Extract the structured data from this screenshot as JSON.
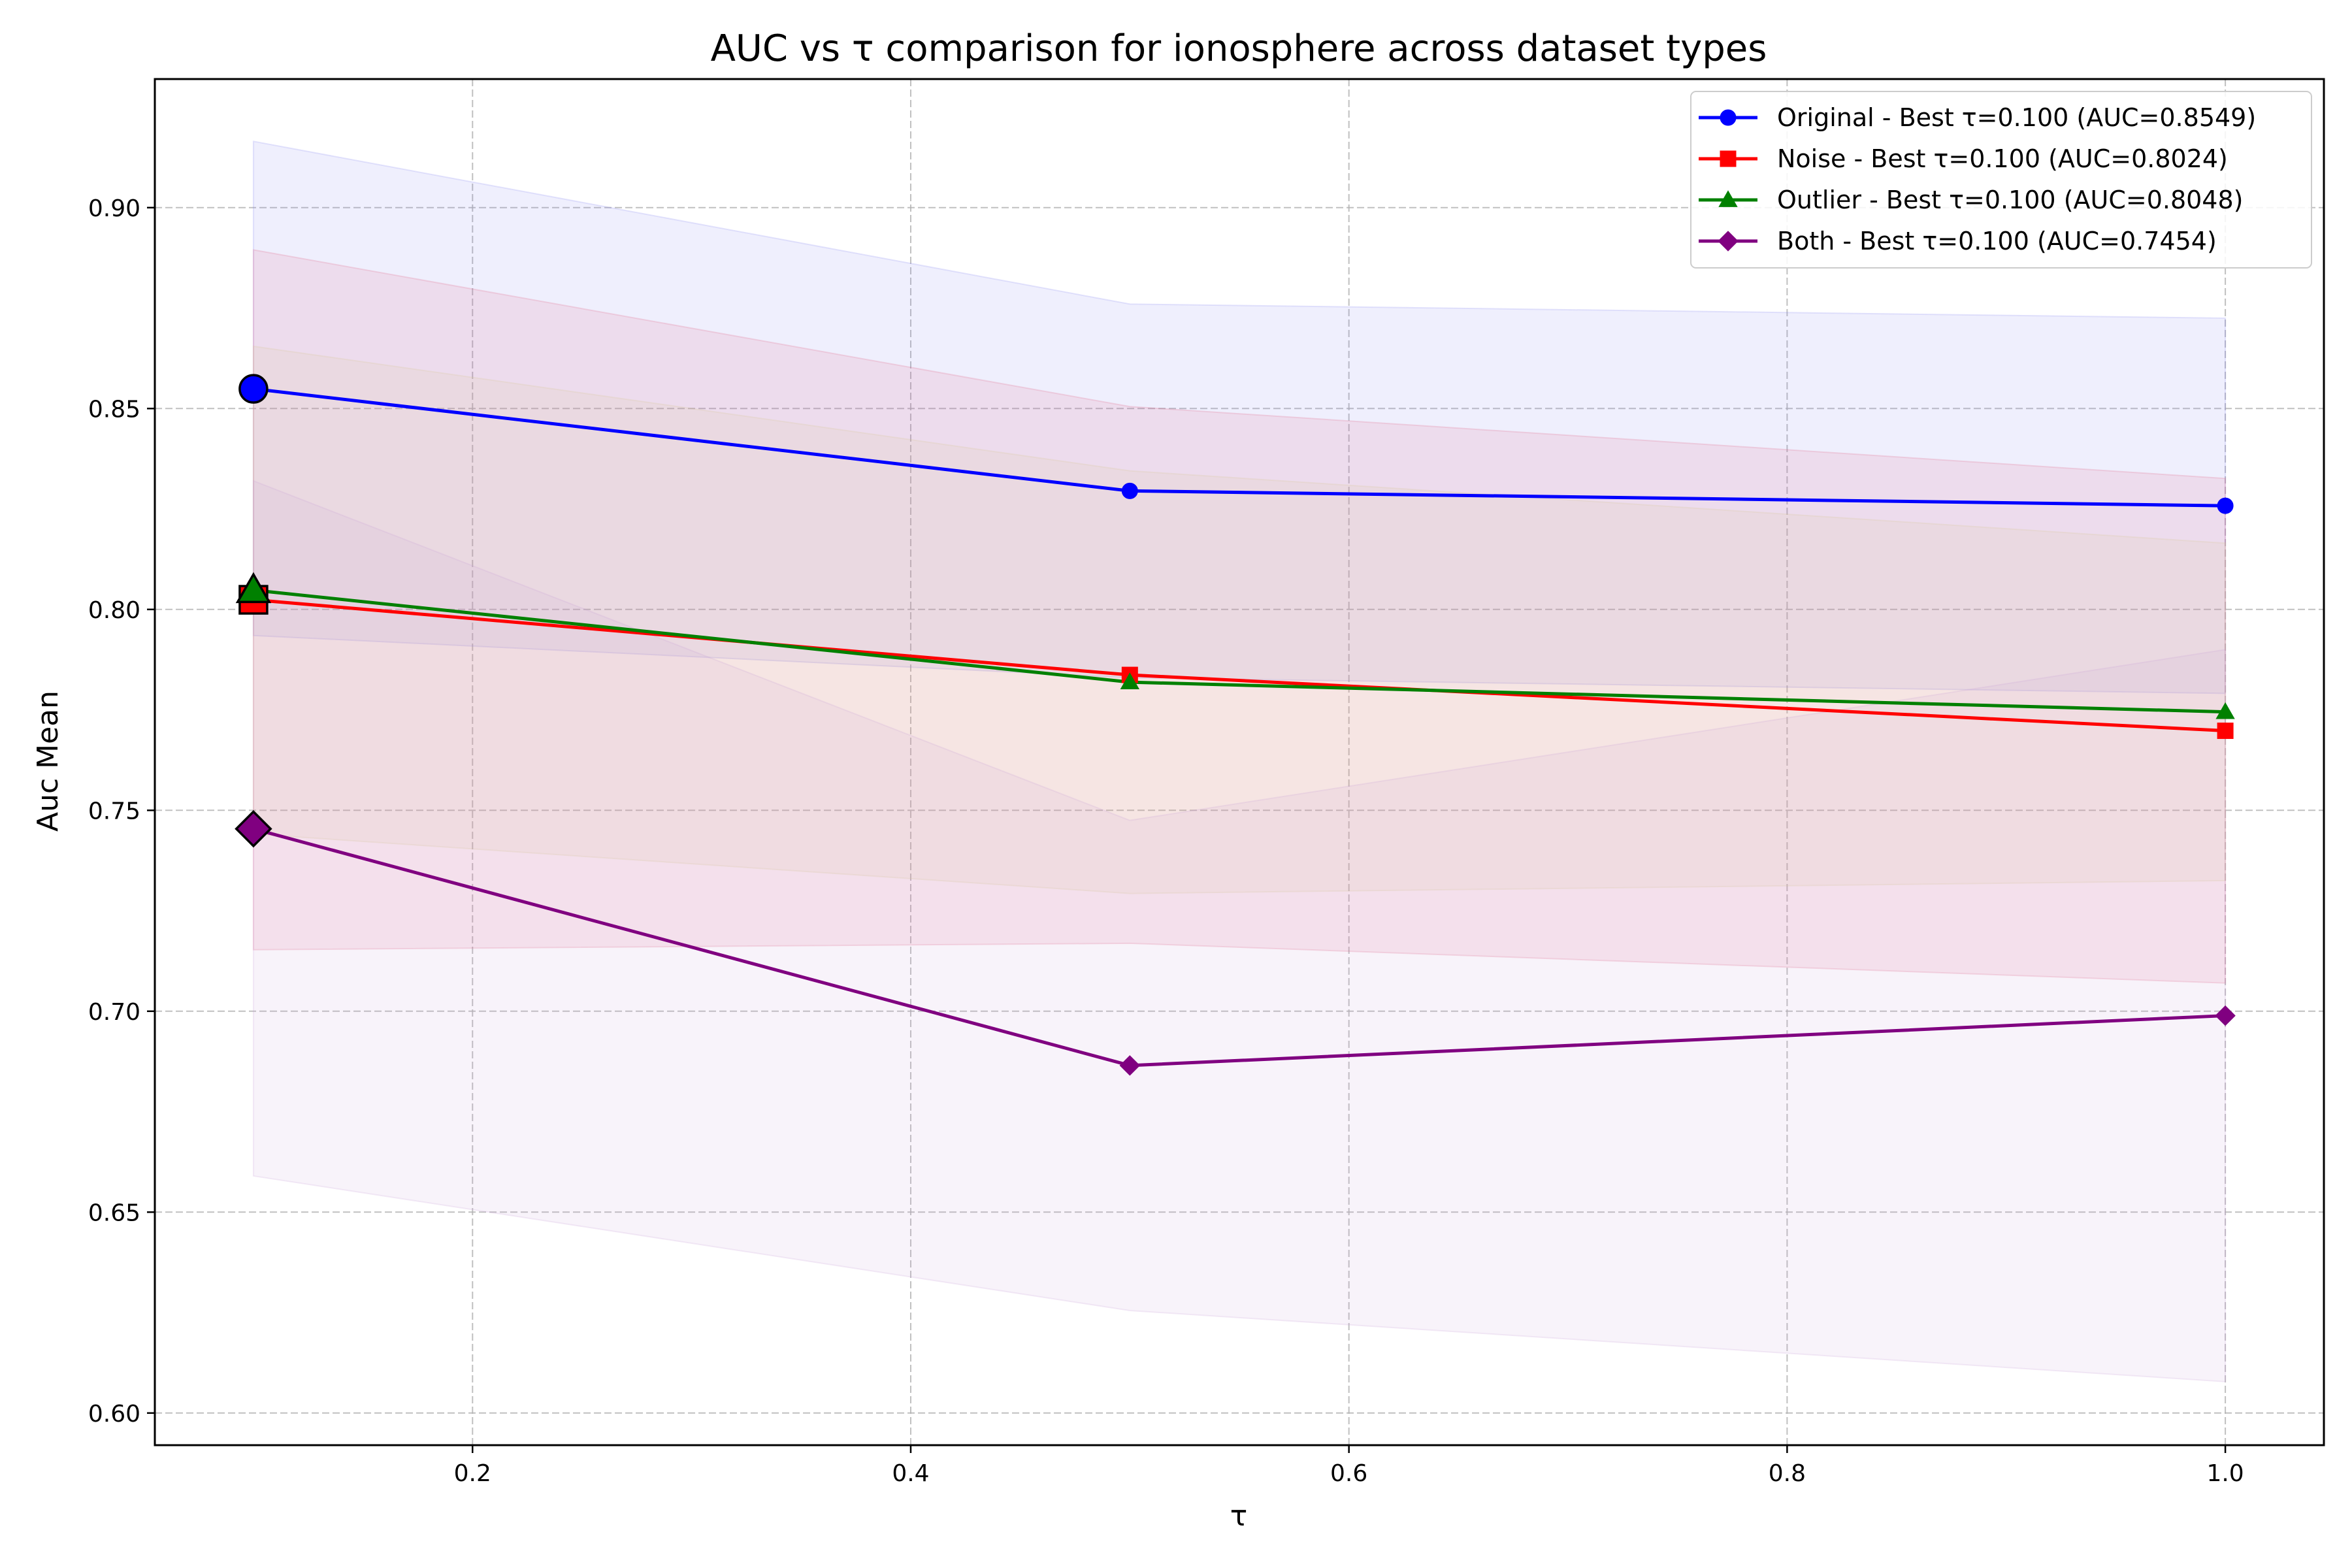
{
  "chart_data": {
    "type": "line",
    "title": "AUC vs τ comparison for ionosphere across dataset types",
    "xlabel": "τ",
    "ylabel": "Auc Mean",
    "x": [
      0.1,
      0.5,
      1.0
    ],
    "xlim": [
      0.055,
      1.045
    ],
    "ylim": [
      0.592,
      0.932
    ],
    "xticks": [
      0.2,
      0.4,
      0.6,
      0.8,
      1.0
    ],
    "xtick_labels": [
      "0.2",
      "0.4",
      "0.6",
      "0.8",
      "1.0"
    ],
    "yticks": [
      0.6,
      0.65,
      0.7,
      0.75,
      0.8,
      0.85,
      0.9
    ],
    "ytick_labels": [
      "0.60",
      "0.65",
      "0.70",
      "0.75",
      "0.80",
      "0.85",
      "0.90"
    ],
    "grid": true,
    "legend_position": "top-right",
    "series": [
      {
        "name": "Original - Best τ=0.100 (AUC=0.8549)",
        "color": "#0000ff",
        "fill_color": "#8080f0",
        "marker": "circle",
        "values": [
          0.8549,
          0.8295,
          0.8258
        ],
        "upper": [
          0.9165,
          0.876,
          0.8725
        ],
        "lower": [
          0.7935,
          0.783,
          0.7791
        ]
      },
      {
        "name": "Noise - Best τ=0.100 (AUC=0.8024)",
        "color": "#ff0000",
        "fill_color": "#e06080",
        "marker": "square",
        "values": [
          0.8024,
          0.7837,
          0.7698
        ],
        "upper": [
          0.8895,
          0.8505,
          0.8326
        ],
        "lower": [
          0.7153,
          0.7169,
          0.707
        ]
      },
      {
        "name": "Outlier - Best τ=0.100 (AUC=0.8048)",
        "color": "#008000",
        "fill_color": "#d8c890",
        "marker": "triangle",
        "values": [
          0.8048,
          0.7819,
          0.7745
        ],
        "upper": [
          0.8655,
          0.8345,
          0.8165
        ],
        "lower": [
          0.7441,
          0.7293,
          0.7325
        ]
      },
      {
        "name": "Both - Best τ=0.100 (AUC=0.7454)",
        "color": "#800080",
        "fill_color": "#c8a0d8",
        "marker": "diamond",
        "values": [
          0.7454,
          0.6865,
          0.6989
        ],
        "upper": [
          0.832,
          0.7475,
          0.79
        ],
        "lower": [
          0.659,
          0.6255,
          0.6078
        ]
      }
    ]
  }
}
